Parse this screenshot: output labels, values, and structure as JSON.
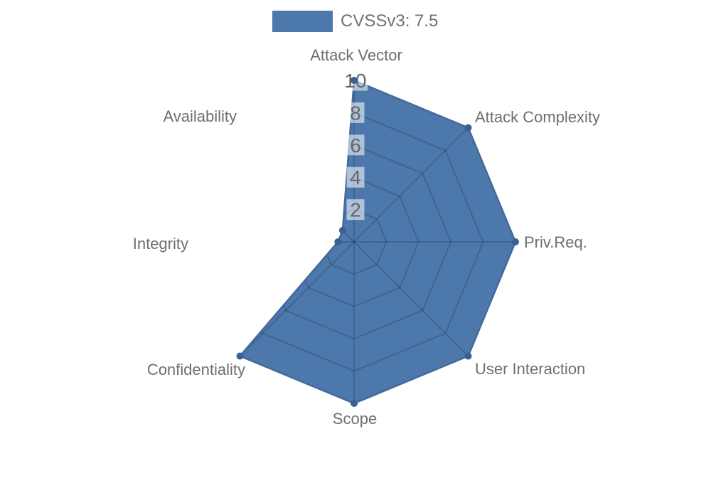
{
  "legend": {
    "label": "CVSSv3: 7.5"
  },
  "chart_data": {
    "type": "radar",
    "title": "",
    "categories": [
      "Attack Vector",
      "Attack Complexity",
      "Priv.Req.",
      "User Interaction",
      "Scope",
      "Confidentiality",
      "Integrity",
      "Availability"
    ],
    "series": [
      {
        "name": "CVSSv3: 7.5",
        "values": [
          10,
          10,
          10,
          10,
          10,
          10,
          1,
          1
        ]
      }
    ],
    "scale": {
      "min": 0,
      "max": 10,
      "ticks": [
        2,
        4,
        6,
        8,
        10
      ]
    },
    "layout_hints": {
      "direction": "clockwise",
      "start_axis": "top",
      "rings": "straight-sided web",
      "grid": "visible only inside filled polygon",
      "legend_position": "top-center"
    },
    "colors": {
      "fill": "#4C78AB",
      "outline": "#44699B",
      "marker": "#3A5F93",
      "grid_line": "rgba(0,0,0,0.16)",
      "tick_backdrop": "rgba(255,255,255,0.55)",
      "tick_text": "#62676D",
      "label_text": "#6E6E6E",
      "legend_text": "#6F7174"
    }
  }
}
